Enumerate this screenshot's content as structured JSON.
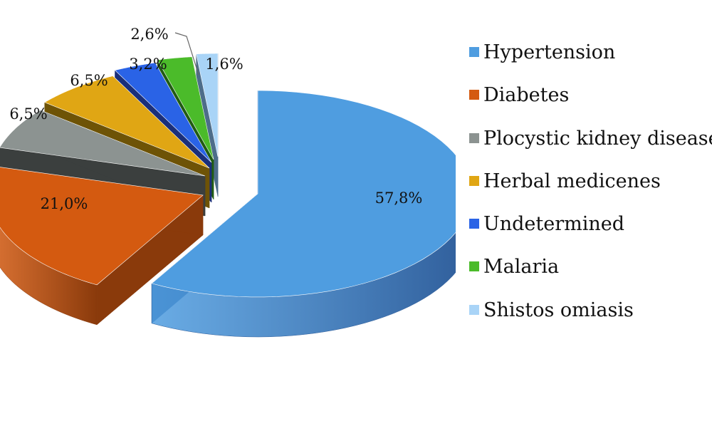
{
  "chart_data": {
    "type": "pie",
    "style": "3d-exploded",
    "series": [
      {
        "name": "Hypertension",
        "value": 57.8,
        "label": "57,8%",
        "color": "#4f9de0",
        "dark": "#2f5d9a"
      },
      {
        "name": "Diabetes",
        "value": 21.0,
        "label": "21,0%",
        "color": "#d45a10",
        "dark": "#8a3a0b"
      },
      {
        "name": "Plocystic kidney disease",
        "value": 6.5,
        "label": "6,5%",
        "color": "#8c9391",
        "dark": "#3b3f3e"
      },
      {
        "name": "Herbal medicenes",
        "value": 6.5,
        "label": "6,5%",
        "color": "#e0a614",
        "dark": "#6e5306"
      },
      {
        "name": "Undetermined",
        "value": 3.2,
        "label": "3,2%",
        "color": "#2a63e6",
        "dark": "#1a2f7a"
      },
      {
        "name": "Malaria",
        "value": 2.6,
        "label": "2,6%",
        "color": "#4bbb2a",
        "dark": "#215c13"
      },
      {
        "name": "Shistos omiasis",
        "value": 1.6,
        "label": "1,6%",
        "color": "#a9d4f7",
        "dark": "#4d6d8a"
      }
    ],
    "legend_position": "right"
  }
}
